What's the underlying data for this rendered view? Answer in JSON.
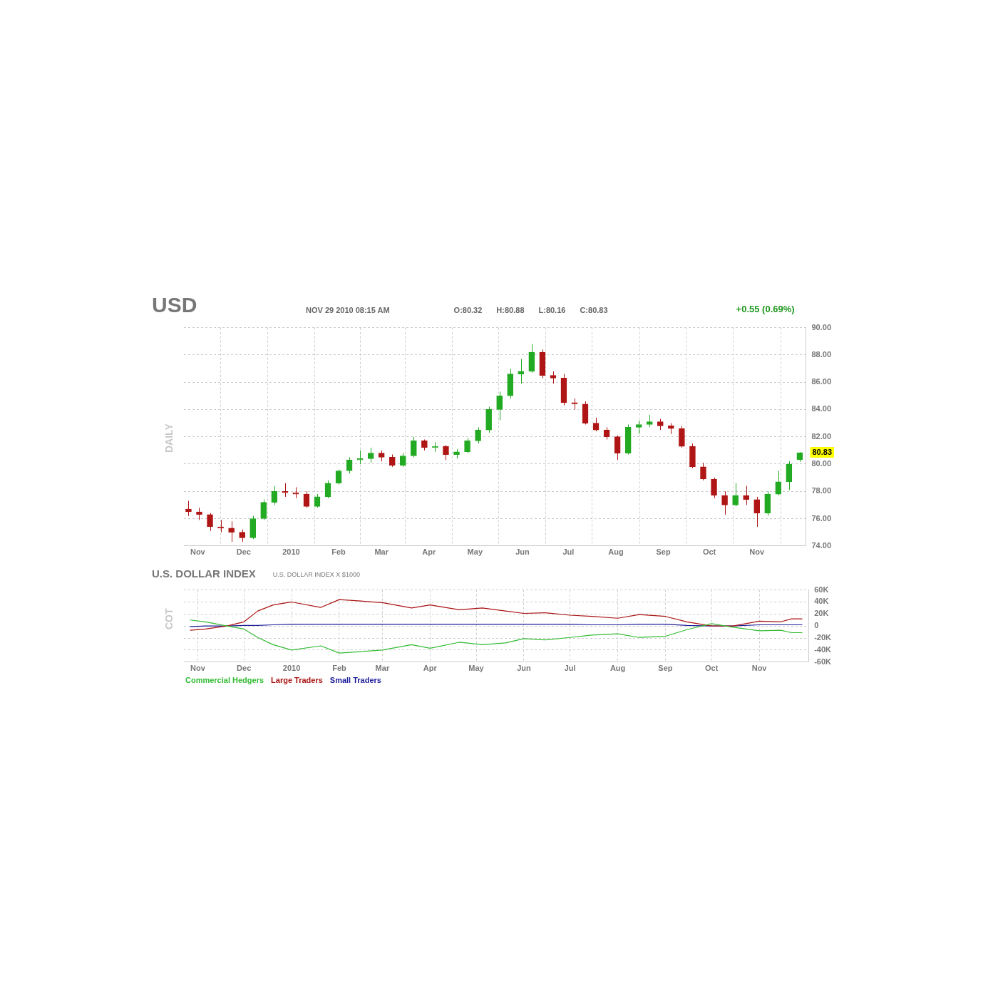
{
  "chart_data": [
    {
      "type": "candlestick",
      "title": "USD",
      "ylabel": "DAILY",
      "annotations": [
        "NOV 29 2010 08:15 AM",
        "O:80.32",
        "H:80.88",
        "L:80.16",
        "C:80.83",
        "+0.55 (0.69%)",
        "80.83"
      ],
      "x": [
        "2009-10-26",
        "2009-11-02",
        "2009-11-09",
        "2009-11-16",
        "2009-11-23",
        "2009-11-30",
        "2009-12-07",
        "2009-12-14",
        "2009-12-21",
        "2009-12-28",
        "2010-01-04",
        "2010-01-11",
        "2010-01-18",
        "2010-01-25",
        "2010-02-01",
        "2010-02-08",
        "2010-02-15",
        "2010-02-22",
        "2010-03-01",
        "2010-03-08",
        "2010-03-15",
        "2010-03-22",
        "2010-03-29",
        "2010-04-05",
        "2010-04-12",
        "2010-04-19",
        "2010-04-26",
        "2010-05-03",
        "2010-05-10",
        "2010-05-17",
        "2010-05-24",
        "2010-05-31",
        "2010-06-07",
        "2010-06-14",
        "2010-06-21",
        "2010-06-28",
        "2010-07-05",
        "2010-07-12",
        "2010-07-19",
        "2010-07-26",
        "2010-08-02",
        "2010-08-09",
        "2010-08-16",
        "2010-08-23",
        "2010-08-30",
        "2010-09-06",
        "2010-09-13",
        "2010-09-20",
        "2010-09-27",
        "2010-10-04",
        "2010-10-11",
        "2010-10-18",
        "2010-10-25",
        "2010-11-01",
        "2010-11-08",
        "2010-11-15",
        "2010-11-22",
        "2010-11-29"
      ],
      "ohlc": [
        [
          76.7,
          77.3,
          76.2,
          76.5
        ],
        [
          76.5,
          76.8,
          75.9,
          76.3
        ],
        [
          76.3,
          76.4,
          75.1,
          75.4
        ],
        [
          75.4,
          75.9,
          75.0,
          75.3
        ],
        [
          75.3,
          75.8,
          74.3,
          75.0
        ],
        [
          75.0,
          75.2,
          74.3,
          74.6
        ],
        [
          74.6,
          76.2,
          74.5,
          76.0
        ],
        [
          76.0,
          77.4,
          75.9,
          77.2
        ],
        [
          77.2,
          78.4,
          77.0,
          78.0
        ],
        [
          78.0,
          78.6,
          77.6,
          77.9
        ],
        [
          77.9,
          78.3,
          77.5,
          77.8
        ],
        [
          77.8,
          78.0,
          76.8,
          76.9
        ],
        [
          76.9,
          77.8,
          76.8,
          77.6
        ],
        [
          77.6,
          78.8,
          77.5,
          78.6
        ],
        [
          78.6,
          79.6,
          78.5,
          79.5
        ],
        [
          79.5,
          80.5,
          79.3,
          80.3
        ],
        [
          80.3,
          81.0,
          80.0,
          80.4
        ],
        [
          80.4,
          81.2,
          80.1,
          80.8
        ],
        [
          80.8,
          81.0,
          80.2,
          80.5
        ],
        [
          80.5,
          80.7,
          79.8,
          79.9
        ],
        [
          79.9,
          80.8,
          79.8,
          80.6
        ],
        [
          80.6,
          82.0,
          80.5,
          81.7
        ],
        [
          81.7,
          81.8,
          81.0,
          81.2
        ],
        [
          81.2,
          81.6,
          80.9,
          81.3
        ],
        [
          81.3,
          81.4,
          80.3,
          80.7
        ],
        [
          80.7,
          81.1,
          80.4,
          80.9
        ],
        [
          80.9,
          81.9,
          80.8,
          81.7
        ],
        [
          81.7,
          82.7,
          81.5,
          82.5
        ],
        [
          82.5,
          84.2,
          82.3,
          84.0
        ],
        [
          84.0,
          85.3,
          83.2,
          85.0
        ],
        [
          85.0,
          87.0,
          84.8,
          86.6
        ],
        [
          86.6,
          87.7,
          85.9,
          86.8
        ],
        [
          86.8,
          88.8,
          86.7,
          88.2
        ],
        [
          88.2,
          88.4,
          86.3,
          86.5
        ],
        [
          86.5,
          86.8,
          85.9,
          86.3
        ],
        [
          86.3,
          86.6,
          84.3,
          84.5
        ],
        [
          84.5,
          84.8,
          84.0,
          84.4
        ],
        [
          84.4,
          84.6,
          82.9,
          83.0
        ],
        [
          83.0,
          83.4,
          82.4,
          82.5
        ],
        [
          82.5,
          82.7,
          81.8,
          82.0
        ],
        [
          82.0,
          82.1,
          80.3,
          80.8
        ],
        [
          80.8,
          82.9,
          80.7,
          82.7
        ],
        [
          82.7,
          83.2,
          82.2,
          82.9
        ],
        [
          82.9,
          83.6,
          82.7,
          83.1
        ],
        [
          83.1,
          83.3,
          82.5,
          82.8
        ],
        [
          82.8,
          83.0,
          82.2,
          82.6
        ],
        [
          82.6,
          82.8,
          81.2,
          81.3
        ],
        [
          81.3,
          81.5,
          79.7,
          79.8
        ],
        [
          79.8,
          80.1,
          78.8,
          78.9
        ],
        [
          78.9,
          79.0,
          77.5,
          77.7
        ],
        [
          77.7,
          78.0,
          76.3,
          77.0
        ],
        [
          77.0,
          78.6,
          76.9,
          77.7
        ],
        [
          77.7,
          78.4,
          77.0,
          77.4
        ],
        [
          77.4,
          77.6,
          75.4,
          76.4
        ],
        [
          76.4,
          78.0,
          76.2,
          77.8
        ],
        [
          77.8,
          79.5,
          77.7,
          78.7
        ],
        [
          78.7,
          80.2,
          78.1,
          80.0
        ],
        [
          80.32,
          80.88,
          80.16,
          80.83
        ]
      ],
      "colors": [
        "#b01515",
        "#b01515",
        "#b01515",
        "#b01515",
        "#b01515",
        "#b01515",
        "#22aa22",
        "#22aa22",
        "#22aa22",
        "#b01515",
        "#b01515",
        "#b01515",
        "#22aa22",
        "#22aa22",
        "#22aa22",
        "#22aa22",
        "#22aa22",
        "#22aa22",
        "#b01515",
        "#b01515",
        "#22aa22",
        "#22aa22",
        "#b01515",
        "#22aa22",
        "#b01515",
        "#22aa22",
        "#22aa22",
        "#22aa22",
        "#22aa22",
        "#22aa22",
        "#22aa22",
        "#22aa22",
        "#22aa22",
        "#b01515",
        "#b01515",
        "#b01515",
        "#b01515",
        "#b01515",
        "#b01515",
        "#b01515",
        "#b01515",
        "#22aa22",
        "#22aa22",
        "#22aa22",
        "#b01515",
        "#b01515",
        "#b01515",
        "#b01515",
        "#b01515",
        "#b01515",
        "#b01515",
        "#22aa22",
        "#b01515",
        "#b01515",
        "#22aa22",
        "#22aa22",
        "#22aa22",
        "#22aa22"
      ],
      "xlim": [
        "2009-10-23",
        "2010-12-03"
      ],
      "xticks": [
        {
          "value": "2009-11-01",
          "label": "Nov"
        },
        {
          "value": "2009-12-01",
          "label": "Dec"
        },
        {
          "value": "2010-01-01",
          "label": "2010"
        },
        {
          "value": "2010-02-01",
          "label": "Feb"
        },
        {
          "value": "2010-03-01",
          "label": "Mar"
        },
        {
          "value": "2010-04-01",
          "label": "Apr"
        },
        {
          "value": "2010-05-01",
          "label": "May"
        },
        {
          "value": "2010-06-01",
          "label": "Jun"
        },
        {
          "value": "2010-07-01",
          "label": "Jul"
        },
        {
          "value": "2010-08-01",
          "label": "Aug"
        },
        {
          "value": "2010-09-01",
          "label": "Sep"
        },
        {
          "value": "2010-10-01",
          "label": "Oct"
        },
        {
          "value": "2010-11-01",
          "label": "Nov"
        }
      ],
      "ylim": [
        74,
        90
      ],
      "yticks": [
        {
          "value": 74,
          "label": "74.00"
        },
        {
          "value": 76,
          "label": "76.00"
        },
        {
          "value": 78,
          "label": "78.00"
        },
        {
          "value": 80,
          "label": "80.00"
        },
        {
          "value": 82,
          "label": "82.00"
        },
        {
          "value": 84,
          "label": "84.00"
        },
        {
          "value": 86,
          "label": "86.00"
        },
        {
          "value": 88,
          "label": "88.00"
        },
        {
          "value": 90,
          "label": "90.00"
        }
      ],
      "grid": true
    },
    {
      "type": "line",
      "title": "U.S. DOLLAR INDEX",
      "subtitle": "U.S. DOLLAR INDEX X $1000",
      "ylabel": "COT",
      "x": [
        "2009-10-27",
        "2009-11-06",
        "2009-11-20",
        "2009-12-01",
        "2009-12-10",
        "2009-12-20",
        "2010-01-01",
        "2010-01-20",
        "2010-02-01",
        "2010-03-01",
        "2010-03-20",
        "2010-04-01",
        "2010-04-20",
        "2010-05-05",
        "2010-05-20",
        "2010-06-01",
        "2010-06-15",
        "2010-07-01",
        "2010-07-15",
        "2010-08-01",
        "2010-08-15",
        "2010-09-01",
        "2010-09-15",
        "2010-10-01",
        "2010-10-15",
        "2010-11-01",
        "2010-11-15",
        "2010-11-22",
        "2010-11-29"
      ],
      "series": [
        {
          "name": "Commercial Hedgers",
          "color": "#33bb33",
          "values": [
            10,
            7,
            0,
            -5,
            -19,
            -31,
            -40,
            -33,
            -45,
            -40,
            -31,
            -37,
            -27,
            -31,
            -28,
            -21,
            -23,
            -19,
            -15,
            -13,
            -19,
            -17,
            -6,
            4,
            -2,
            -8,
            -7,
            -11,
            -11
          ]
        },
        {
          "name": "Large Traders",
          "color": "#aa1111",
          "values": [
            -7,
            -5,
            0,
            7,
            25,
            35,
            40,
            31,
            44,
            39,
            30,
            35,
            27,
            30,
            25,
            21,
            22,
            18,
            16,
            13,
            19,
            16,
            7,
            0,
            0,
            8,
            7,
            12,
            12
          ]
        },
        {
          "name": "Small Traders",
          "color": "#1a1a99",
          "values": [
            -1,
            0,
            0,
            1,
            1,
            2,
            3,
            3,
            3,
            3,
            3,
            3,
            3,
            3,
            3,
            3,
            3,
            3,
            2,
            2,
            3,
            3,
            1,
            0,
            0,
            2,
            2,
            2,
            2
          ]
        }
      ],
      "xlim": [
        "2009-10-23",
        "2010-12-03"
      ],
      "xticks": [
        {
          "value": "2009-11-01",
          "label": "Nov"
        },
        {
          "value": "2009-12-01",
          "label": "Dec"
        },
        {
          "value": "2010-01-01",
          "label": "2010"
        },
        {
          "value": "2010-02-01",
          "label": "Feb"
        },
        {
          "value": "2010-03-01",
          "label": "Mar"
        },
        {
          "value": "2010-04-01",
          "label": "Apr"
        },
        {
          "value": "2010-05-01",
          "label": "May"
        },
        {
          "value": "2010-06-01",
          "label": "Jun"
        },
        {
          "value": "2010-07-01",
          "label": "Jul"
        },
        {
          "value": "2010-08-01",
          "label": "Aug"
        },
        {
          "value": "2010-09-01",
          "label": "Sep"
        },
        {
          "value": "2010-10-01",
          "label": "Oct"
        },
        {
          "value": "2010-11-01",
          "label": "Nov"
        }
      ],
      "ylim": [
        -60,
        60
      ],
      "yticks": [
        {
          "value": -60,
          "label": "-60K"
        },
        {
          "value": -40,
          "label": "-40K"
        },
        {
          "value": -20,
          "label": "-20K"
        },
        {
          "value": 0,
          "label": "0"
        },
        {
          "value": 20,
          "label": "20K"
        },
        {
          "value": 40,
          "label": "40K"
        },
        {
          "value": 60,
          "label": "60K"
        }
      ],
      "grid": true,
      "legend": "bottom left",
      "marker": "none",
      "line_style": "solid"
    }
  ]
}
